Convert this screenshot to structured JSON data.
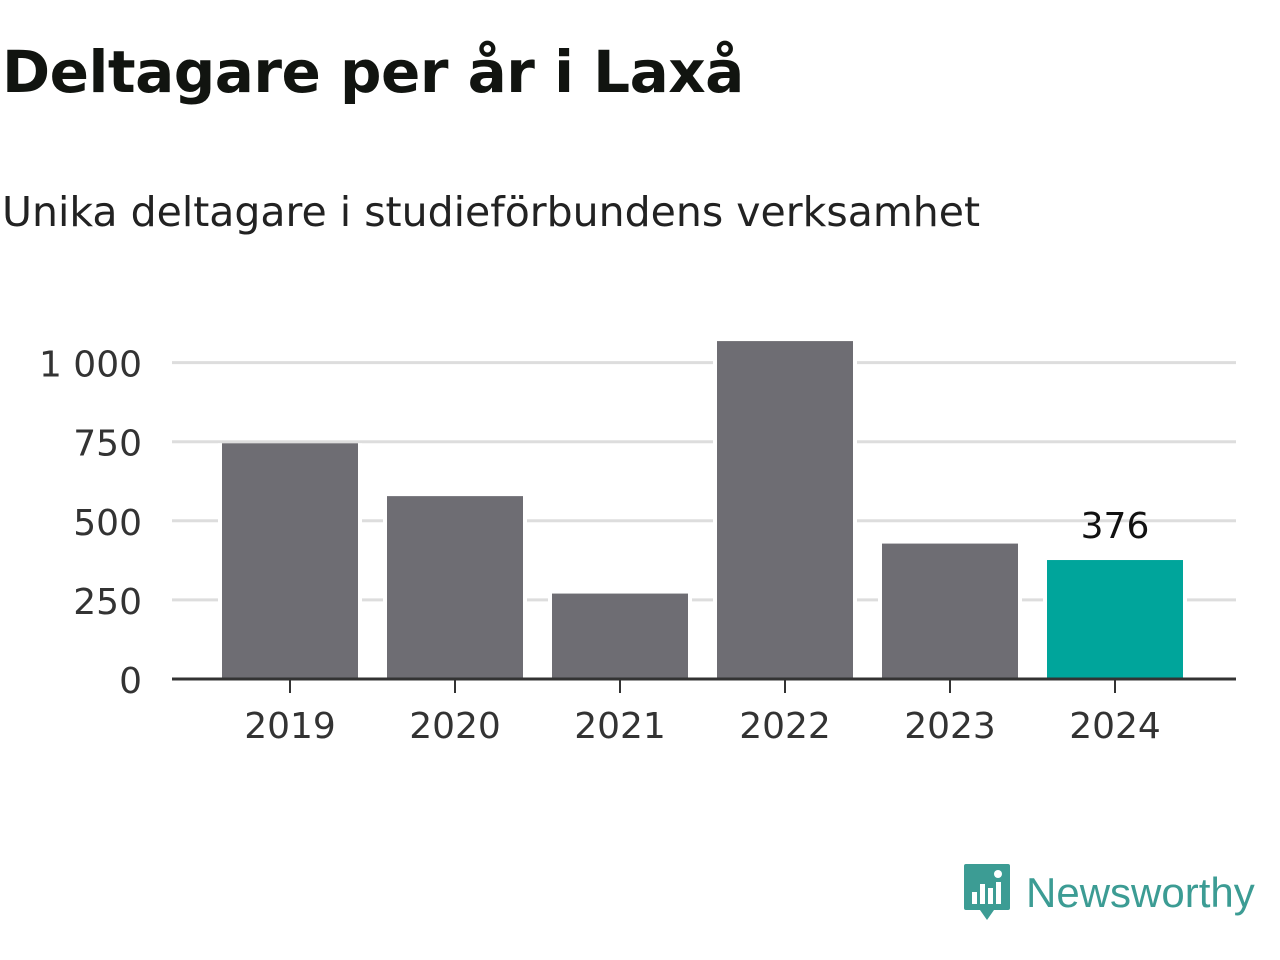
{
  "header": {
    "title": "Deltagare per år i Laxå",
    "subtitle": "Unika deltagare i studieförbundens verksamhet"
  },
  "chart_data": {
    "type": "bar",
    "title": "Deltagare per år i Laxå",
    "subtitle": "Unika deltagare i studieförbundens verksamhet",
    "categories": [
      "2019",
      "2020",
      "2021",
      "2022",
      "2023",
      "2024"
    ],
    "values": [
      745,
      578,
      270,
      1068,
      428,
      376
    ],
    "yticks": [
      0,
      250,
      500,
      750,
      1000
    ],
    "ytick_labels": [
      "0",
      "250",
      "500",
      "750",
      "1 000"
    ],
    "ylim": [
      0,
      1100
    ],
    "grid": true,
    "xlabel": "",
    "ylabel": "",
    "highlight_index": 5,
    "highlight_label": "376",
    "colors": {
      "bar": "#6e6d73",
      "highlight": "#00a59b",
      "grid": "#dddddd",
      "axis": "#333333"
    }
  },
  "brand": {
    "name": "Newsworthy",
    "icon": "newsworthy-logo-icon",
    "color": "#3c9c94"
  }
}
